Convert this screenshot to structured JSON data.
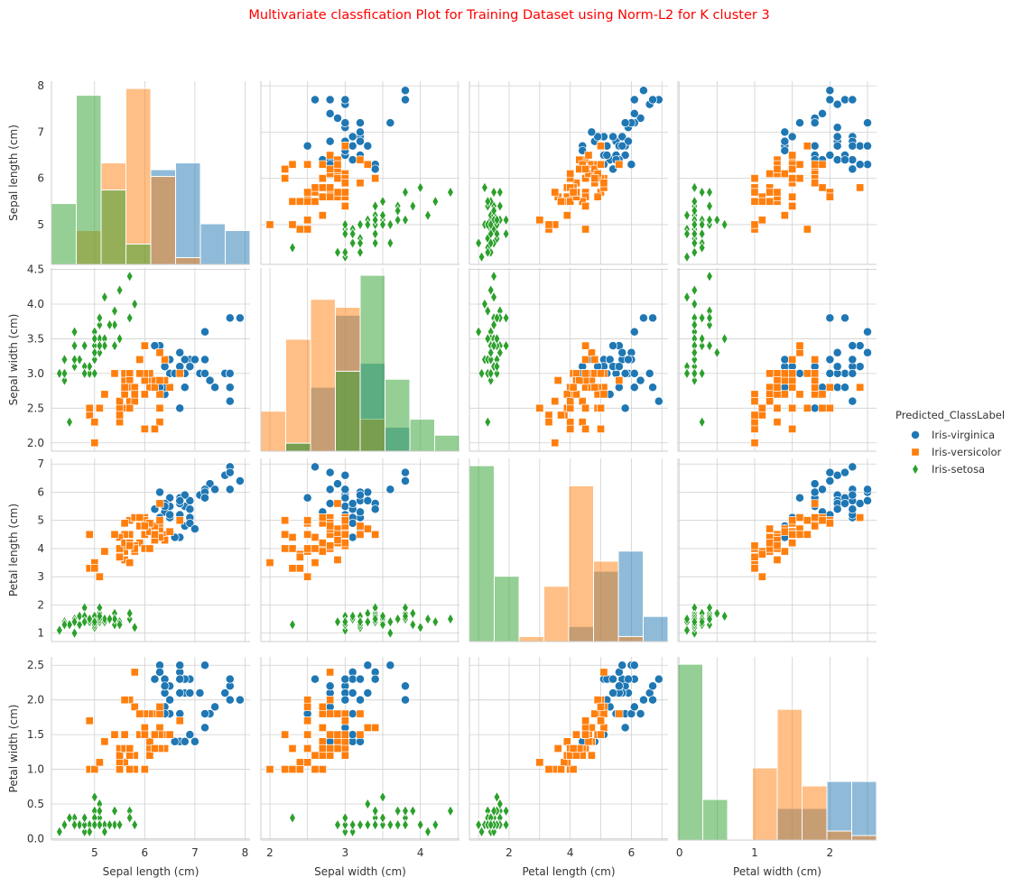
{
  "chart_data": {
    "type": "scatter",
    "title": "Multivariate classfication Plot for Training Dataset using Norm-L2 for K cluster 3",
    "title_color": "#ff0000",
    "variables": [
      "Sepal length (cm)",
      "Sepal width (cm)",
      "Petal length (cm)",
      "Petal width (cm)"
    ],
    "axis_ranges": [
      [
        4.14,
        8.1
      ],
      [
        1.88,
        4.52
      ],
      [
        0.7,
        7.2
      ],
      [
        -0.02,
        2.62
      ]
    ],
    "ticks": [
      [
        5,
        6,
        7,
        8
      ],
      [
        2.0,
        2.5,
        3.0,
        3.5,
        4.0,
        4.5
      ],
      [
        1,
        2,
        3,
        4,
        5,
        6,
        7
      ],
      [
        0.0,
        0.5,
        1.0,
        1.5,
        2.0,
        2.5
      ]
    ],
    "tick_labels": [
      [
        "5",
        "6",
        "7",
        "8"
      ],
      [
        "2.0",
        "2.5",
        "3.0",
        "3.5",
        "4.0",
        "4.5"
      ],
      [
        "1",
        "2",
        "3",
        "4",
        "5",
        "6",
        "7"
      ],
      [
        "0.0",
        "0.5",
        "1.0",
        "1.5",
        "2.0",
        "2.5"
      ]
    ],
    "bottom_tick_labels": [
      [
        "5",
        "6",
        "7",
        "8"
      ],
      [
        "2",
        "3",
        "4"
      ],
      [
        "2",
        "4",
        "6"
      ],
      [
        "0",
        "1",
        "2"
      ]
    ],
    "grid": true,
    "legend": {
      "title": "Predicted_ClassLabel",
      "position": "right",
      "entries": [
        {
          "name": "Iris-virginica",
          "marker": "circle",
          "color": "#1f77b4"
        },
        {
          "name": "Iris-versicolor",
          "marker": "square",
          "color": "#ff7f0e"
        },
        {
          "name": "Iris-setosa",
          "marker": "diamond",
          "color": "#2ca02c"
        }
      ]
    },
    "series": [
      {
        "name": "Iris-virginica",
        "marker": "circle",
        "color": "#1f77b4",
        "columns": [
          "sepal_length",
          "sepal_width",
          "petal_length",
          "petal_width"
        ],
        "points": [
          [
            6.3,
            3.3,
            6.0,
            2.5
          ],
          [
            7.1,
            3.0,
            5.9,
            2.1
          ],
          [
            6.5,
            3.0,
            5.8,
            2.2
          ],
          [
            7.6,
            3.0,
            6.6,
            2.1
          ],
          [
            7.3,
            2.9,
            6.3,
            1.8
          ],
          [
            6.7,
            2.5,
            5.8,
            1.8
          ],
          [
            7.2,
            3.6,
            6.1,
            2.5
          ],
          [
            6.5,
            3.2,
            5.1,
            2.0
          ],
          [
            6.4,
            2.7,
            5.3,
            1.9
          ],
          [
            6.8,
            3.0,
            5.5,
            2.1
          ],
          [
            6.4,
            3.2,
            5.3,
            2.3
          ],
          [
            6.5,
            3.0,
            5.5,
            1.8
          ],
          [
            7.7,
            3.8,
            6.7,
            2.2
          ],
          [
            7.7,
            2.6,
            6.9,
            2.3
          ],
          [
            6.9,
            3.2,
            5.7,
            2.3
          ],
          [
            7.7,
            2.8,
            6.7,
            2.0
          ],
          [
            6.7,
            3.3,
            5.7,
            2.1
          ],
          [
            7.2,
            3.2,
            6.0,
            1.8
          ],
          [
            6.4,
            2.8,
            5.6,
            2.1
          ],
          [
            7.2,
            3.0,
            5.8,
            1.6
          ],
          [
            7.4,
            2.8,
            6.1,
            1.9
          ],
          [
            7.9,
            3.8,
            6.4,
            2.0
          ],
          [
            6.4,
            2.8,
            5.6,
            2.2
          ],
          [
            6.3,
            2.8,
            5.1,
            1.5
          ],
          [
            7.7,
            3.0,
            6.1,
            2.3
          ],
          [
            6.3,
            3.4,
            5.6,
            2.4
          ],
          [
            6.4,
            3.1,
            5.5,
            1.8
          ],
          [
            6.9,
            3.1,
            5.4,
            2.1
          ],
          [
            6.7,
            3.1,
            5.6,
            2.4
          ],
          [
            6.9,
            3.1,
            5.1,
            2.3
          ],
          [
            6.8,
            3.2,
            5.9,
            2.3
          ],
          [
            6.7,
            3.3,
            5.7,
            2.5
          ],
          [
            6.7,
            3.0,
            5.2,
            2.3
          ],
          [
            6.5,
            3.0,
            5.2,
            2.0
          ],
          [
            6.2,
            3.4,
            5.4,
            2.3
          ],
          [
            6.7,
            3.1,
            4.4,
            1.4
          ],
          [
            6.6,
            3.0,
            4.4,
            1.4
          ],
          [
            6.8,
            2.8,
            4.8,
            1.4
          ],
          [
            6.9,
            3.1,
            4.9,
            1.5
          ],
          [
            7.0,
            3.2,
            4.7,
            1.4
          ]
        ]
      },
      {
        "name": "Iris-versicolor",
        "marker": "square",
        "color": "#ff7f0e",
        "columns": [
          "sepal_length",
          "sepal_width",
          "petal_length",
          "petal_width"
        ],
        "points": [
          [
            6.4,
            3.2,
            4.5,
            1.5
          ],
          [
            5.5,
            2.3,
            4.0,
            1.3
          ],
          [
            6.5,
            2.8,
            4.6,
            1.5
          ],
          [
            5.7,
            2.8,
            4.5,
            1.3
          ],
          [
            6.3,
            3.3,
            4.7,
            1.6
          ],
          [
            4.9,
            2.4,
            3.3,
            1.0
          ],
          [
            5.2,
            2.7,
            3.9,
            1.4
          ],
          [
            5.0,
            2.0,
            3.5,
            1.0
          ],
          [
            5.9,
            3.0,
            4.2,
            1.5
          ],
          [
            6.0,
            2.2,
            4.0,
            1.0
          ],
          [
            6.1,
            2.9,
            4.7,
            1.4
          ],
          [
            5.6,
            2.9,
            3.6,
            1.3
          ],
          [
            5.6,
            3.0,
            4.5,
            1.5
          ],
          [
            5.8,
            2.7,
            4.1,
            1.0
          ],
          [
            6.2,
            2.2,
            4.5,
            1.5
          ],
          [
            5.6,
            2.5,
            3.9,
            1.1
          ],
          [
            5.9,
            3.2,
            4.8,
            1.8
          ],
          [
            6.1,
            2.8,
            4.0,
            1.3
          ],
          [
            6.3,
            2.5,
            4.9,
            1.5
          ],
          [
            6.1,
            2.8,
            4.7,
            1.2
          ],
          [
            6.4,
            2.9,
            4.3,
            1.3
          ],
          [
            6.0,
            2.9,
            4.5,
            1.5
          ],
          [
            5.7,
            2.6,
            3.5,
            1.0
          ],
          [
            5.5,
            2.4,
            3.8,
            1.1
          ],
          [
            5.5,
            2.4,
            3.7,
            1.0
          ],
          [
            5.8,
            2.7,
            3.9,
            1.2
          ],
          [
            6.0,
            2.7,
            5.1,
            1.6
          ],
          [
            5.4,
            3.0,
            4.5,
            1.5
          ],
          [
            6.0,
            3.4,
            4.5,
            1.6
          ],
          [
            6.3,
            2.3,
            4.4,
            1.3
          ],
          [
            5.6,
            3.0,
            4.1,
            1.3
          ],
          [
            5.5,
            2.5,
            4.0,
            1.3
          ],
          [
            5.5,
            2.6,
            4.4,
            1.2
          ],
          [
            6.1,
            3.0,
            4.6,
            1.4
          ],
          [
            5.8,
            2.6,
            4.0,
            1.2
          ],
          [
            5.0,
            2.3,
            3.3,
            1.0
          ],
          [
            5.6,
            2.7,
            4.2,
            1.3
          ],
          [
            5.7,
            3.0,
            4.2,
            1.2
          ],
          [
            5.7,
            2.9,
            4.2,
            1.3
          ],
          [
            6.2,
            2.9,
            4.3,
            1.3
          ],
          [
            5.1,
            2.5,
            3.0,
            1.1
          ],
          [
            5.7,
            2.8,
            4.1,
            1.3
          ],
          [
            5.8,
            2.7,
            5.1,
            1.9
          ],
          [
            4.9,
            2.5,
            4.5,
            1.7
          ],
          [
            5.7,
            2.5,
            5.0,
            2.0
          ],
          [
            5.8,
            2.8,
            5.1,
            2.4
          ],
          [
            6.0,
            2.2,
            5.0,
            1.5
          ],
          [
            5.6,
            2.8,
            4.9,
            2.0
          ],
          [
            6.3,
            2.7,
            4.9,
            1.8
          ],
          [
            6.2,
            2.8,
            4.8,
            1.8
          ],
          [
            6.1,
            3.0,
            4.9,
            1.8
          ],
          [
            6.3,
            2.9,
            5.6,
            1.8
          ],
          [
            5.8,
            2.7,
            5.1,
            1.9
          ],
          [
            6.0,
            3.0,
            4.8,
            1.8
          ],
          [
            5.9,
            3.0,
            5.1,
            1.8
          ],
          [
            6.3,
            2.5,
            5.0,
            1.9
          ],
          [
            6.2,
            2.2,
            4.5,
            1.5
          ],
          [
            5.5,
            2.4,
            3.7,
            1.0
          ],
          [
            5.4,
            3.0,
            4.5,
            1.5
          ],
          [
            6.7,
            3.0,
            5.0,
            1.7
          ]
        ]
      },
      {
        "name": "Iris-setosa",
        "marker": "diamond",
        "color": "#2ca02c",
        "columns": [
          "sepal_length",
          "sepal_width",
          "petal_length",
          "petal_width"
        ],
        "points": [
          [
            5.1,
            3.5,
            1.4,
            0.2
          ],
          [
            4.9,
            3.0,
            1.4,
            0.2
          ],
          [
            4.7,
            3.2,
            1.3,
            0.2
          ],
          [
            4.6,
            3.1,
            1.5,
            0.2
          ],
          [
            5.0,
            3.6,
            1.4,
            0.2
          ],
          [
            5.4,
            3.9,
            1.7,
            0.4
          ],
          [
            4.6,
            3.4,
            1.4,
            0.3
          ],
          [
            5.0,
            3.4,
            1.5,
            0.2
          ],
          [
            4.4,
            2.9,
            1.4,
            0.2
          ],
          [
            4.9,
            3.1,
            1.5,
            0.1
          ],
          [
            5.4,
            3.7,
            1.5,
            0.2
          ],
          [
            4.8,
            3.4,
            1.6,
            0.2
          ],
          [
            4.8,
            3.0,
            1.4,
            0.1
          ],
          [
            4.3,
            3.0,
            1.1,
            0.1
          ],
          [
            5.8,
            4.0,
            1.2,
            0.2
          ],
          [
            5.7,
            4.4,
            1.5,
            0.4
          ],
          [
            5.4,
            3.9,
            1.3,
            0.4
          ],
          [
            5.1,
            3.5,
            1.4,
            0.3
          ],
          [
            5.7,
            3.8,
            1.7,
            0.3
          ],
          [
            5.1,
            3.8,
            1.5,
            0.3
          ],
          [
            5.4,
            3.4,
            1.7,
            0.2
          ],
          [
            5.1,
            3.7,
            1.5,
            0.4
          ],
          [
            4.6,
            3.6,
            1.0,
            0.2
          ],
          [
            5.1,
            3.3,
            1.7,
            0.5
          ],
          [
            4.8,
            3.4,
            1.9,
            0.2
          ],
          [
            5.0,
            3.0,
            1.6,
            0.2
          ],
          [
            5.0,
            3.4,
            1.6,
            0.4
          ],
          [
            5.2,
            3.5,
            1.5,
            0.2
          ],
          [
            5.2,
            3.4,
            1.4,
            0.2
          ],
          [
            4.7,
            3.2,
            1.6,
            0.2
          ],
          [
            4.8,
            3.1,
            1.6,
            0.2
          ],
          [
            5.4,
            3.4,
            1.5,
            0.4
          ],
          [
            5.2,
            4.1,
            1.5,
            0.1
          ],
          [
            5.5,
            4.2,
            1.4,
            0.2
          ],
          [
            5.0,
            3.2,
            1.2,
            0.2
          ],
          [
            5.5,
            3.5,
            1.3,
            0.2
          ],
          [
            4.4,
            3.0,
            1.3,
            0.2
          ],
          [
            5.1,
            3.4,
            1.5,
            0.2
          ],
          [
            5.0,
            3.5,
            1.3,
            0.3
          ],
          [
            4.5,
            2.3,
            1.3,
            0.3
          ],
          [
            4.4,
            3.2,
            1.3,
            0.2
          ],
          [
            5.0,
            3.5,
            1.6,
            0.6
          ],
          [
            5.1,
            3.8,
            1.9,
            0.4
          ],
          [
            4.8,
            3.0,
            1.4,
            0.3
          ],
          [
            5.1,
            3.8,
            1.6,
            0.2
          ],
          [
            4.6,
            3.2,
            1.4,
            0.2
          ],
          [
            5.3,
            3.7,
            1.5,
            0.2
          ],
          [
            5.0,
            3.3,
            1.4,
            0.2
          ]
        ]
      }
    ]
  }
}
